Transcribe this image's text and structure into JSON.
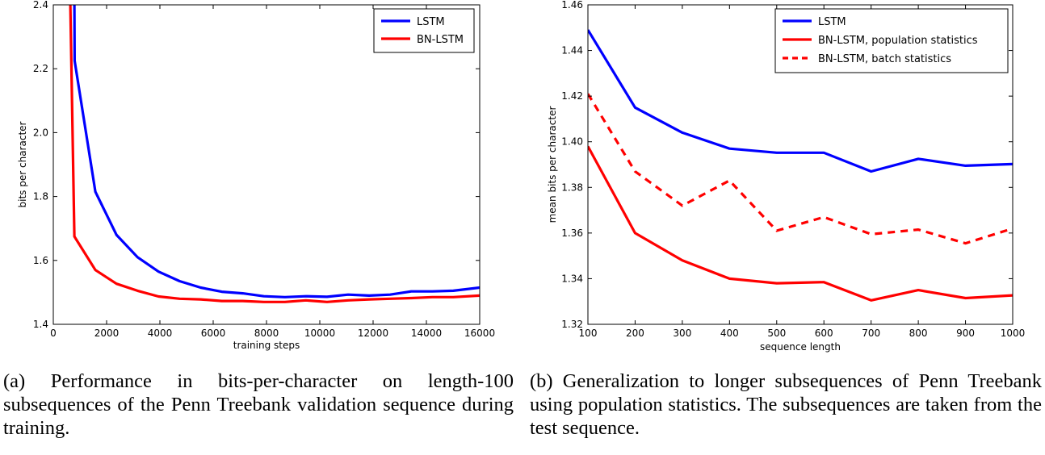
{
  "chart_data": [
    {
      "type": "line",
      "panel": "a",
      "xlabel": "training steps",
      "ylabel": "bits per character",
      "xlim": [
        0,
        16000
      ],
      "ylim": [
        1.4,
        2.4
      ],
      "xticks": [
        0,
        2000,
        4000,
        6000,
        8000,
        10000,
        12000,
        14000,
        16000
      ],
      "yticks": [
        1.4,
        1.6,
        1.8,
        2.0,
        2.2,
        2.4
      ],
      "xtick_labels": [
        "0",
        "2000",
        "4000",
        "6000",
        "8000",
        "10000",
        "12000",
        "14000",
        "16000"
      ],
      "ytick_labels": [
        "1.4",
        "1.6",
        "1.8",
        "2.0",
        "2.2",
        "2.4"
      ],
      "legend_position": "top-right",
      "series": [
        {
          "name": "LSTM",
          "color": "#0000ff",
          "dash": "solid",
          "x": [
            790,
            800,
            1580,
            2370,
            3160,
            3950,
            4740,
            5530,
            6320,
            7110,
            7900,
            8690,
            9480,
            10270,
            11060,
            11850,
            12640,
            13430,
            14220,
            15010,
            16000
          ],
          "y": [
            2.4,
            2.225,
            1.815,
            1.68,
            1.61,
            1.565,
            1.535,
            1.515,
            1.502,
            1.497,
            1.488,
            1.485,
            1.488,
            1.486,
            1.493,
            1.49,
            1.493,
            1.503,
            1.503,
            1.505,
            1.515
          ]
        },
        {
          "name": "BN-LSTM",
          "color": "#ff0000",
          "dash": "solid",
          "x": [
            640,
            790,
            1580,
            2370,
            3160,
            3950,
            4740,
            5530,
            6320,
            7110,
            7900,
            8690,
            9480,
            10270,
            11060,
            11850,
            12640,
            13430,
            14220,
            15010,
            16000
          ],
          "y": [
            2.4,
            1.675,
            1.57,
            1.527,
            1.505,
            1.487,
            1.48,
            1.478,
            1.473,
            1.473,
            1.47,
            1.47,
            1.475,
            1.47,
            1.475,
            1.478,
            1.48,
            1.482,
            1.485,
            1.485,
            1.49
          ]
        }
      ]
    },
    {
      "type": "line",
      "panel": "b",
      "xlabel": "sequence length",
      "ylabel": "mean bits per character",
      "xlim": [
        100,
        1000
      ],
      "ylim": [
        1.32,
        1.46
      ],
      "xticks": [
        100,
        200,
        300,
        400,
        500,
        600,
        700,
        800,
        900,
        1000
      ],
      "yticks": [
        1.32,
        1.34,
        1.36,
        1.38,
        1.4,
        1.42,
        1.44,
        1.46
      ],
      "xtick_labels": [
        "100",
        "200",
        "300",
        "400",
        "500",
        "600",
        "700",
        "800",
        "900",
        "1000"
      ],
      "ytick_labels": [
        "1.32",
        "1.34",
        "1.36",
        "1.38",
        "1.40",
        "1.42",
        "1.44",
        "1.46"
      ],
      "legend_position": "top-right",
      "series": [
        {
          "name": "LSTM",
          "color": "#0000ff",
          "dash": "solid",
          "x": [
            100,
            200,
            300,
            400,
            500,
            600,
            700,
            800,
            900,
            1000
          ],
          "y": [
            1.449,
            1.415,
            1.404,
            1.397,
            1.3952,
            1.3952,
            1.387,
            1.3925,
            1.3895,
            1.3902
          ]
        },
        {
          "name": "BN-LSTM, population statistics",
          "color": "#ff0000",
          "dash": "solid",
          "x": [
            100,
            200,
            300,
            400,
            500,
            600,
            700,
            800,
            900,
            1000
          ],
          "y": [
            1.398,
            1.36,
            1.348,
            1.34,
            1.338,
            1.3385,
            1.3305,
            1.335,
            1.3315,
            1.3327
          ]
        },
        {
          "name": "BN-LSTM, batch statistics",
          "color": "#ff0000",
          "dash": "dashed",
          "x": [
            100,
            200,
            300,
            400,
            500,
            600,
            700,
            800,
            900,
            1000
          ],
          "y": [
            1.421,
            1.387,
            1.372,
            1.383,
            1.361,
            1.367,
            1.3595,
            1.3615,
            1.3555,
            1.362
          ]
        }
      ]
    }
  ],
  "captions": {
    "a": "(a) Performance in bits-per-character on length-100 subsequences of the Penn Treebank validation sequence during training.",
    "b": "(b) Generalization to longer subsequences of Penn Treebank using population statistics. The subsequences are taken from the test sequence."
  }
}
